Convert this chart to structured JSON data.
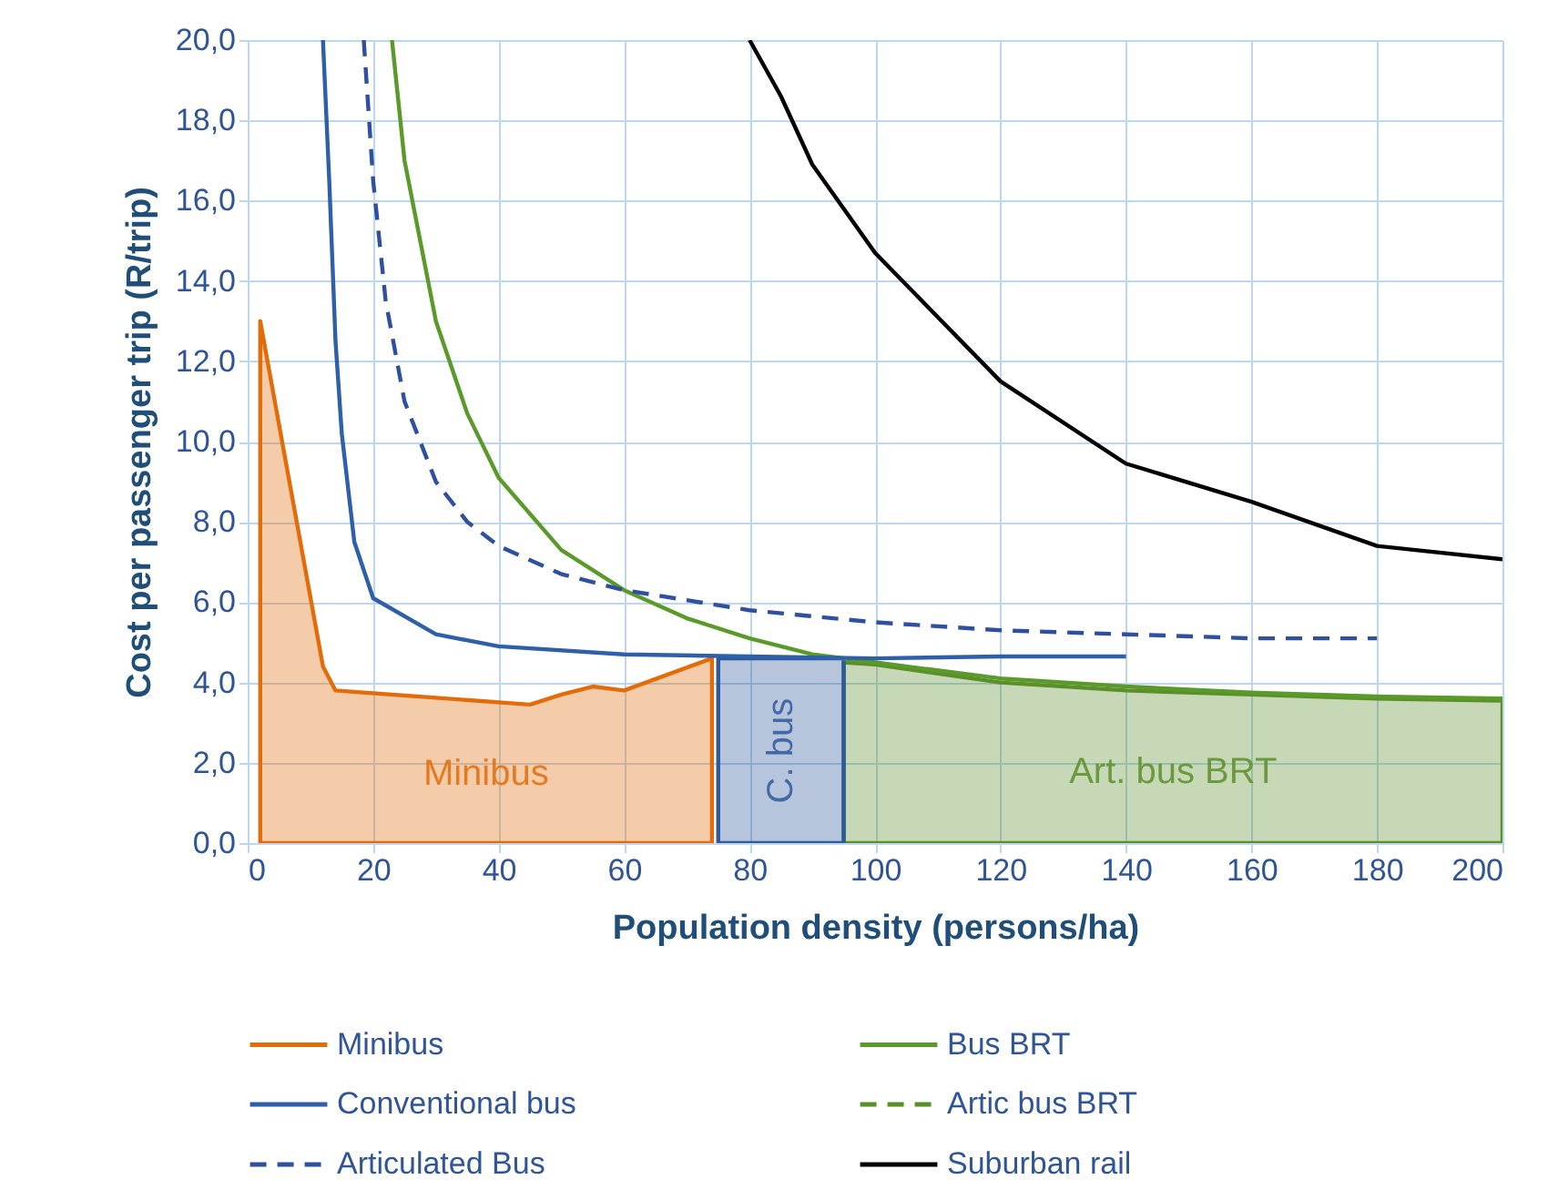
{
  "chart_data": {
    "type": "line",
    "xlabel": "Population density (persons/ha)",
    "ylabel": "Cost per passenger trip (R/trip)",
    "xlim": [
      0,
      200
    ],
    "xticks": [
      0,
      20,
      40,
      60,
      80,
      100,
      120,
      140,
      160,
      180,
      200
    ],
    "ylim": [
      0,
      20
    ],
    "yticks": [
      {
        "value": 0,
        "label": "0,0"
      },
      {
        "value": 2,
        "label": "2,0"
      },
      {
        "value": 4,
        "label": "4,0"
      },
      {
        "value": 6,
        "label": "6,0"
      },
      {
        "value": 8,
        "label": "8,0"
      },
      {
        "value": 10,
        "label": "10,0"
      },
      {
        "value": 12,
        "label": "12,0"
      },
      {
        "value": 14,
        "label": "14,0"
      },
      {
        "value": 16,
        "label": "16,0"
      },
      {
        "value": 18,
        "label": "18,0"
      },
      {
        "value": 20,
        "label": "20,0"
      }
    ],
    "grid": true,
    "legend": "bottom",
    "series": [
      {
        "name": "Minibus",
        "type": "area",
        "color": "#e36c0a",
        "line_style": "solid",
        "x": [
          2,
          12,
          14,
          45,
          50,
          55,
          60,
          74
        ],
        "values": [
          13.0,
          4.4,
          3.8,
          3.45,
          3.7,
          3.9,
          3.8,
          4.6
        ]
      },
      {
        "name": "Bus BRT",
        "color": "#5a9a2a",
        "line_style": "solid",
        "x": [
          23,
          25,
          30,
          35,
          40,
          50,
          60,
          70,
          80,
          90,
          100,
          120,
          140,
          160,
          180,
          200
        ],
        "values": [
          20,
          17,
          13,
          10.7,
          9.1,
          7.3,
          6.3,
          5.6,
          5.1,
          4.7,
          4.5,
          4.1,
          3.9,
          3.75,
          3.65,
          3.6
        ]
      },
      {
        "name": "Conventional bus",
        "color": "#2f5fa8",
        "line_style": "solid",
        "x": [
          12,
          13,
          14,
          15,
          17,
          20,
          30,
          40,
          60,
          80,
          100,
          120,
          140
        ],
        "values": [
          20,
          16.5,
          12.5,
          10.2,
          7.5,
          6.1,
          5.2,
          4.9,
          4.7,
          4.65,
          4.6,
          4.65,
          4.65
        ]
      },
      {
        "name": "Artic bus BRT",
        "type": "area",
        "color": "#5b8f2a",
        "line_style": "dashed",
        "x": [
          95,
          100,
          120,
          140,
          160,
          180,
          200
        ],
        "values": [
          4.5,
          4.45,
          4.0,
          3.8,
          3.7,
          3.6,
          3.55
        ]
      },
      {
        "name": "Articulated Bus",
        "color": "#2f4f9f",
        "line_style": "dashed",
        "x": [
          18.5,
          20,
          22,
          25,
          30,
          35,
          40,
          50,
          60,
          80,
          100,
          120,
          140,
          160,
          180
        ],
        "values": [
          20,
          16.5,
          13.5,
          11,
          9,
          8,
          7.4,
          6.7,
          6.3,
          5.8,
          5.5,
          5.3,
          5.2,
          5.1,
          5.1
        ]
      },
      {
        "name": "Suburban rail",
        "color": "#000000",
        "line_style": "solid",
        "x": [
          80,
          85,
          90,
          100,
          120,
          140,
          160,
          180,
          200
        ],
        "values": [
          20,
          18.6,
          16.9,
          14.7,
          11.5,
          9.45,
          8.5,
          7.4,
          7.07
        ]
      },
      {
        "type": "area",
        "color": "#2e5a9c",
        "line_style": "solid",
        "x": [
          75,
          95
        ],
        "values": [
          4.6,
          4.6
        ]
      }
    ],
    "annotations": [
      "Minibus",
      "C. bus",
      "Art. bus BRT"
    ]
  }
}
